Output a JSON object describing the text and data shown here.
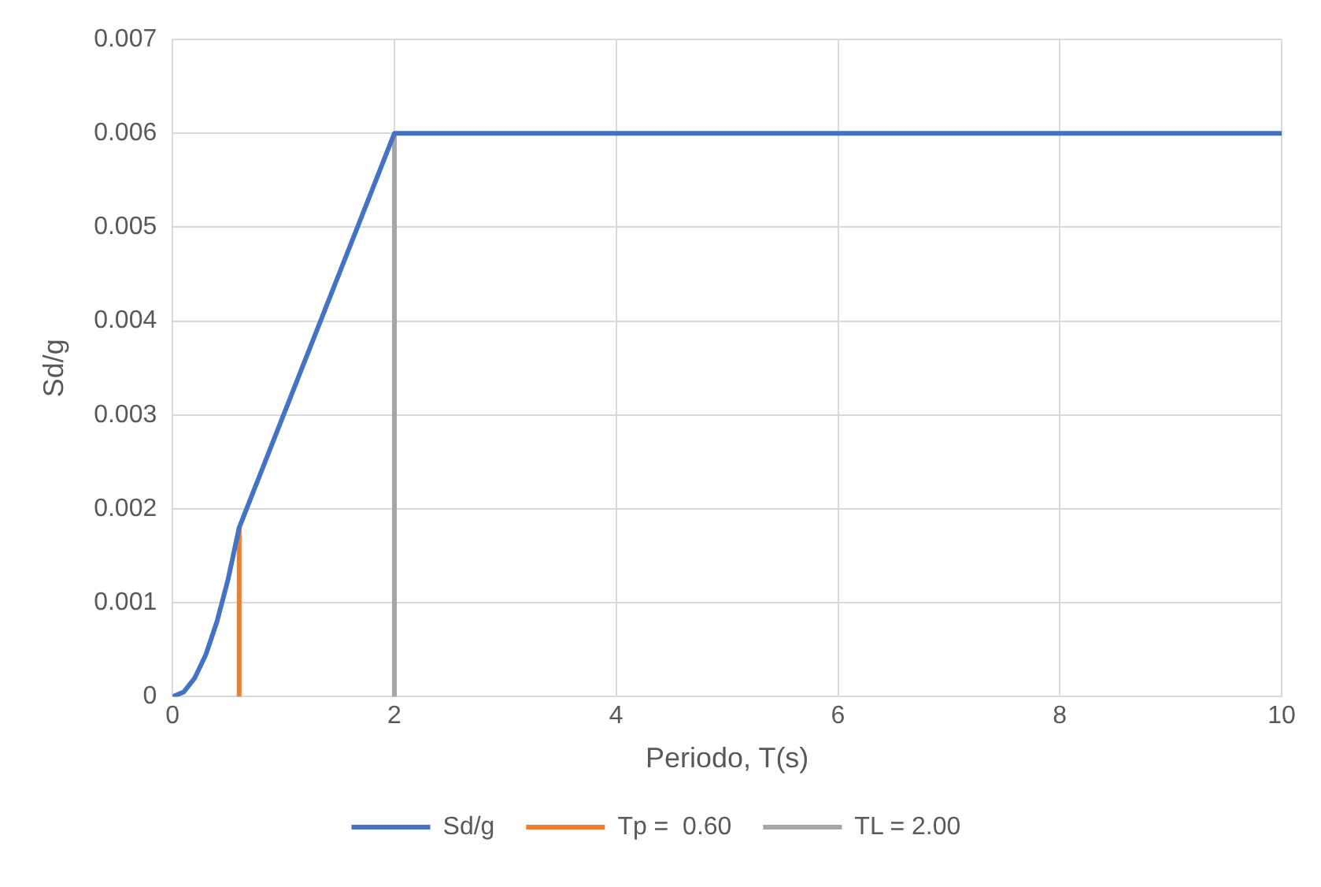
{
  "chart_data": {
    "type": "line",
    "xlabel": "Periodo, T(s)",
    "ylabel": "Sd/g",
    "xlim": [
      0,
      10
    ],
    "xticks": [
      0,
      2,
      4,
      6,
      8,
      10
    ],
    "ylim": [
      0,
      0.007
    ],
    "yticks": [
      0,
      0.001,
      0.002,
      0.003,
      0.004,
      0.005,
      0.006,
      0.007
    ],
    "grid": true,
    "legend": "bottom",
    "marker": "none",
    "line_style": "solid",
    "series": [
      {
        "name": "Sd/g",
        "color": "#4472c4",
        "x": [
          0,
          0.1,
          0.2,
          0.3,
          0.4,
          0.5,
          0.6,
          2,
          10
        ],
        "values": [
          0,
          5e-05,
          0.0002,
          0.00045,
          0.0008,
          0.00125,
          0.0018,
          0.006,
          0.006
        ]
      },
      {
        "name": "Tp =  0.60",
        "color": "#ed7d31",
        "x": [
          0.6,
          0.6
        ],
        "values": [
          0,
          0.0018
        ]
      },
      {
        "name": "TL = 2.00",
        "color": "#a5a5a5",
        "x": [
          2,
          2
        ],
        "values": [
          0,
          0.006
        ]
      }
    ]
  }
}
